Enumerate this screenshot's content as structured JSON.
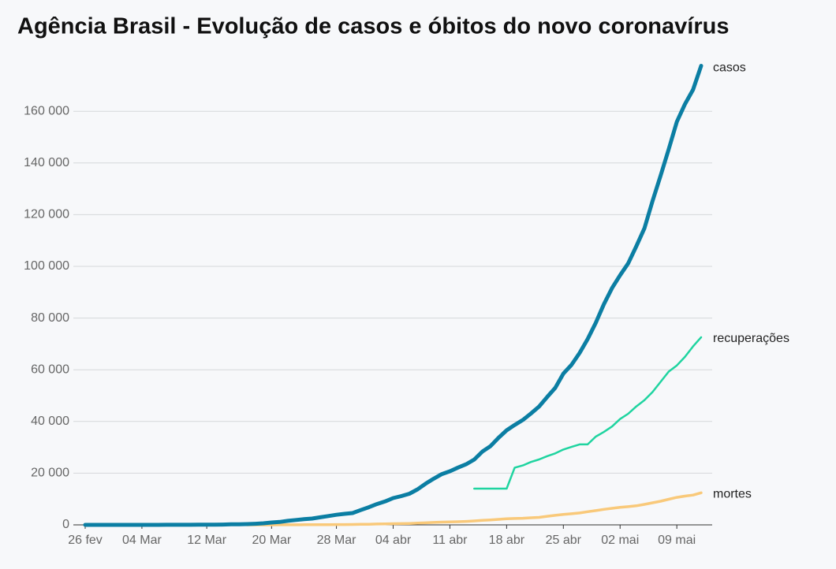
{
  "chart_data": {
    "type": "line",
    "title": "Agência Brasil - Evolução de casos e óbitos do novo coronavírus",
    "categories": [
      "26 fev",
      null,
      null,
      null,
      null,
      null,
      null,
      "04 Mar",
      null,
      null,
      null,
      null,
      null,
      null,
      null,
      "12 Mar",
      null,
      null,
      null,
      null,
      null,
      null,
      null,
      "20 Mar",
      null,
      null,
      null,
      null,
      null,
      null,
      null,
      "28 Mar",
      null,
      null,
      null,
      null,
      null,
      null,
      "04 abr",
      null,
      null,
      null,
      null,
      null,
      null,
      "11 abr",
      null,
      null,
      null,
      null,
      null,
      null,
      "18 abr",
      null,
      null,
      null,
      null,
      null,
      null,
      "25 abr",
      null,
      null,
      null,
      null,
      null,
      null,
      "02 mai",
      null,
      null,
      null,
      null,
      null,
      null,
      "09 mai",
      null,
      null,
      null
    ],
    "series": [
      {
        "name": "casos",
        "color": "#0b7ea3",
        "values": [
          1,
          1,
          1,
          2,
          2,
          2,
          2,
          3,
          8,
          13,
          19,
          25,
          25,
          34,
          52,
          77,
          98,
          121,
          200,
          234,
          291,
          428,
          621,
          904,
          1128,
          1546,
          1891,
          2201,
          2433,
          2915,
          3417,
          3904,
          4256,
          4579,
          5717,
          6836,
          8044,
          9056,
          10360,
          11130,
          12056,
          13717,
          15927,
          17857,
          19638,
          20727,
          22169,
          23430,
          25262,
          28320,
          30425,
          33682,
          36599,
          38654,
          40581,
          43079,
          45757,
          49492,
          52995,
          58509,
          61888,
          66501,
          71886,
          78162,
          85380,
          91589,
          96559,
          101147,
          107780,
          114715,
          125218,
          135106,
          145328,
          155939,
          162699,
          168331,
          177589
        ]
      },
      {
        "name": "recuperações",
        "color": "#1fd4a0",
        "values": [
          null,
          null,
          null,
          null,
          null,
          null,
          null,
          null,
          null,
          null,
          null,
          null,
          null,
          null,
          null,
          null,
          null,
          null,
          null,
          null,
          null,
          null,
          null,
          null,
          null,
          null,
          null,
          null,
          null,
          null,
          null,
          null,
          null,
          null,
          null,
          null,
          null,
          null,
          null,
          null,
          null,
          null,
          null,
          null,
          null,
          null,
          null,
          null,
          14026,
          14026,
          14026,
          14026,
          14026,
          22130,
          22991,
          24325,
          25318,
          26573,
          27655,
          29160,
          30152,
          31142,
          31142,
          34132,
          35935,
          38039,
          40937,
          42991,
          45815,
          48221,
          51370,
          55350,
          59297,
          61685,
          64957,
          69033,
          72597
        ]
      },
      {
        "name": "mortes",
        "color": "#f9c97a",
        "values": [
          null,
          null,
          null,
          null,
          null,
          null,
          null,
          null,
          null,
          null,
          null,
          null,
          null,
          null,
          null,
          null,
          null,
          null,
          null,
          null,
          1,
          4,
          7,
          11,
          18,
          25,
          34,
          46,
          59,
          77,
          92,
          111,
          136,
          159,
          201,
          240,
          324,
          359,
          445,
          486,
          553,
          667,
          800,
          941,
          1056,
          1124,
          1223,
          1328,
          1532,
          1736,
          1924,
          2141,
          2347,
          2462,
          2575,
          2741,
          2906,
          3331,
          3704,
          4057,
          4286,
          4603,
          5083,
          5513,
          6006,
          6412,
          6761,
          7051,
          7367,
          7921,
          8536,
          9146,
          9897,
          10627,
          11123,
          11519,
          12400
        ]
      }
    ],
    "ylim": [
      0,
      180000
    ],
    "yticks": [
      0,
      {
        "value": 20000,
        "label": "20 000"
      },
      {
        "value": 40000,
        "label": "40 000"
      },
      {
        "value": 60000,
        "label": "60 000"
      },
      {
        "value": 80000,
        "label": "80 000"
      },
      {
        "value": 100000,
        "label": "100 000"
      },
      {
        "value": 120000,
        "label": "120 000"
      },
      {
        "value": 140000,
        "label": "140 000"
      },
      {
        "value": 160000,
        "label": "160 000"
      }
    ],
    "grid": true
  }
}
